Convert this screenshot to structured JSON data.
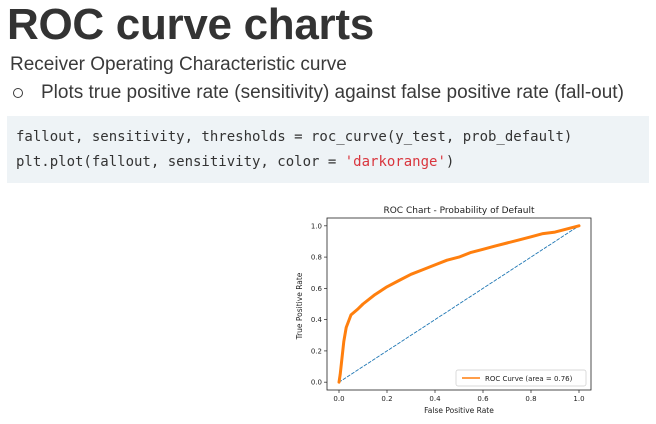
{
  "slide": {
    "title": "ROC curve charts",
    "subtitle": "Receiver Operating Characteristic curve",
    "bullet": "Plots true positive rate (sensitivity) against false positive rate (fall-out)"
  },
  "code": {
    "line1": "fallout, sensitivity, thresholds = roc_curve(y_test, prob_default)",
    "line2_prefix": "plt.plot(fallout, sensitivity, color = ",
    "line2_string": "'darkorange'",
    "line2_suffix": ")"
  },
  "chart_data": {
    "type": "line",
    "title": "ROC Chart - Probability of Default",
    "xlabel": "False Positive Rate",
    "ylabel": "True Positive Rate",
    "xlim": [
      0.0,
      1.0
    ],
    "ylim": [
      0.0,
      1.0
    ],
    "xticks": [
      "0.0",
      "0.2",
      "0.4",
      "0.6",
      "0.8",
      "1.0"
    ],
    "yticks": [
      "0.0",
      "0.2",
      "0.4",
      "0.6",
      "0.8",
      "1.0"
    ],
    "grid": false,
    "legend_position": "bottom-right",
    "series": [
      {
        "name": "ROC Curve (area = 0.76)",
        "color": "#ff7f0e",
        "style": "solid",
        "x": [
          0.0,
          0.005,
          0.01,
          0.02,
          0.03,
          0.05,
          0.08,
          0.1,
          0.15,
          0.2,
          0.25,
          0.3,
          0.35,
          0.4,
          0.45,
          0.5,
          0.55,
          0.6,
          0.65,
          0.7,
          0.75,
          0.8,
          0.85,
          0.9,
          0.95,
          1.0
        ],
        "y": [
          0.0,
          0.05,
          0.12,
          0.26,
          0.35,
          0.43,
          0.47,
          0.5,
          0.56,
          0.61,
          0.65,
          0.69,
          0.72,
          0.75,
          0.78,
          0.8,
          0.83,
          0.85,
          0.87,
          0.89,
          0.91,
          0.93,
          0.95,
          0.96,
          0.98,
          1.0
        ]
      },
      {
        "color": "#1f77b4",
        "style": "dashed",
        "x": [
          0.0,
          1.0
        ],
        "y": [
          0.0,
          1.0
        ]
      }
    ]
  }
}
